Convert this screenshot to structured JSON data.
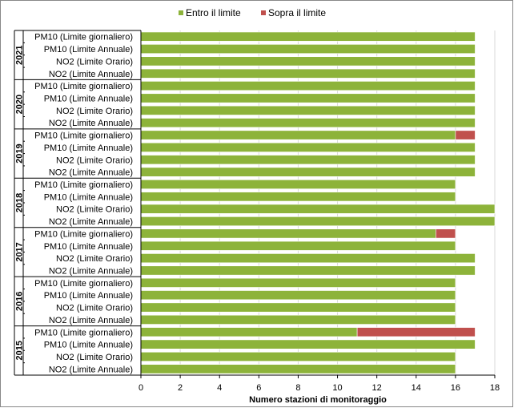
{
  "chart_data": {
    "type": "bar",
    "orientation": "horizontal",
    "stacked": true,
    "xlabel": "Numero stazioni di monitoraggio",
    "xlim": [
      0,
      18
    ],
    "xticks": [
      0,
      2,
      4,
      6,
      8,
      10,
      12,
      14,
      16,
      18
    ],
    "grid": "vertical",
    "legend_position": "top",
    "series": [
      {
        "name": "Entro il limite",
        "color": "#8db33a"
      },
      {
        "name": "Sopra il limite",
        "color": "#c0504d"
      }
    ],
    "groups": [
      {
        "year": "2021",
        "items": [
          {
            "label": "PM10 (Limite giornaliero)",
            "values": [
              17,
              0
            ]
          },
          {
            "label": "PM10 (Limite Annuale)",
            "values": [
              17,
              0
            ]
          },
          {
            "label": "NO2 (Limite Orario)",
            "values": [
              17,
              0
            ]
          },
          {
            "label": "NO2 (Limite Annuale)",
            "values": [
              17,
              0
            ]
          }
        ]
      },
      {
        "year": "2020",
        "items": [
          {
            "label": "PM10 (Limite giornaliero)",
            "values": [
              17,
              0
            ]
          },
          {
            "label": "PM10 (Limite Annuale)",
            "values": [
              17,
              0
            ]
          },
          {
            "label": "NO2 (Limite Orario)",
            "values": [
              17,
              0
            ]
          },
          {
            "label": "NO2 (Limite Annuale)",
            "values": [
              17,
              0
            ]
          }
        ]
      },
      {
        "year": "2019",
        "items": [
          {
            "label": "PM10 (Limite giornaliero)",
            "values": [
              16,
              1
            ]
          },
          {
            "label": "PM10 (Limite Annuale)",
            "values": [
              17,
              0
            ]
          },
          {
            "label": "NO2 (Limite Orario)",
            "values": [
              17,
              0
            ]
          },
          {
            "label": "NO2 (Limite Annuale)",
            "values": [
              17,
              0
            ]
          }
        ]
      },
      {
        "year": "2018",
        "items": [
          {
            "label": "PM10 (Limite giornaliero)",
            "values": [
              16,
              0
            ]
          },
          {
            "label": "PM10 (Limite Annuale)",
            "values": [
              16,
              0
            ]
          },
          {
            "label": "NO2 (Limite Orario)",
            "values": [
              18,
              0
            ]
          },
          {
            "label": "NO2 (Limite Annuale)",
            "values": [
              18,
              0
            ]
          }
        ]
      },
      {
        "year": "2017",
        "items": [
          {
            "label": "PM10 (Limite giornaliero)",
            "values": [
              15,
              1
            ]
          },
          {
            "label": "PM10 (Limite Annuale)",
            "values": [
              16,
              0
            ]
          },
          {
            "label": "NO2 (Limite Orario)",
            "values": [
              17,
              0
            ]
          },
          {
            "label": "NO2 (Limite Annuale)",
            "values": [
              17,
              0
            ]
          }
        ]
      },
      {
        "year": "2016",
        "items": [
          {
            "label": "PM10 (Limite giornaliero)",
            "values": [
              16,
              0
            ]
          },
          {
            "label": "PM10 (Limite Annuale)",
            "values": [
              16,
              0
            ]
          },
          {
            "label": "NO2 (Limite Orario)",
            "values": [
              16,
              0
            ]
          },
          {
            "label": "NO2 (Limite Annuale)",
            "values": [
              16,
              0
            ]
          }
        ]
      },
      {
        "year": "2015",
        "items": [
          {
            "label": "PM10 (Limite giornaliero)",
            "values": [
              11,
              6
            ]
          },
          {
            "label": "PM10 (Limite Annuale)",
            "values": [
              17,
              0
            ]
          },
          {
            "label": "NO2 (Limite Orario)",
            "values": [
              16,
              0
            ]
          },
          {
            "label": "NO2 (Limite Annuale)",
            "values": [
              16,
              0
            ]
          }
        ]
      }
    ]
  }
}
